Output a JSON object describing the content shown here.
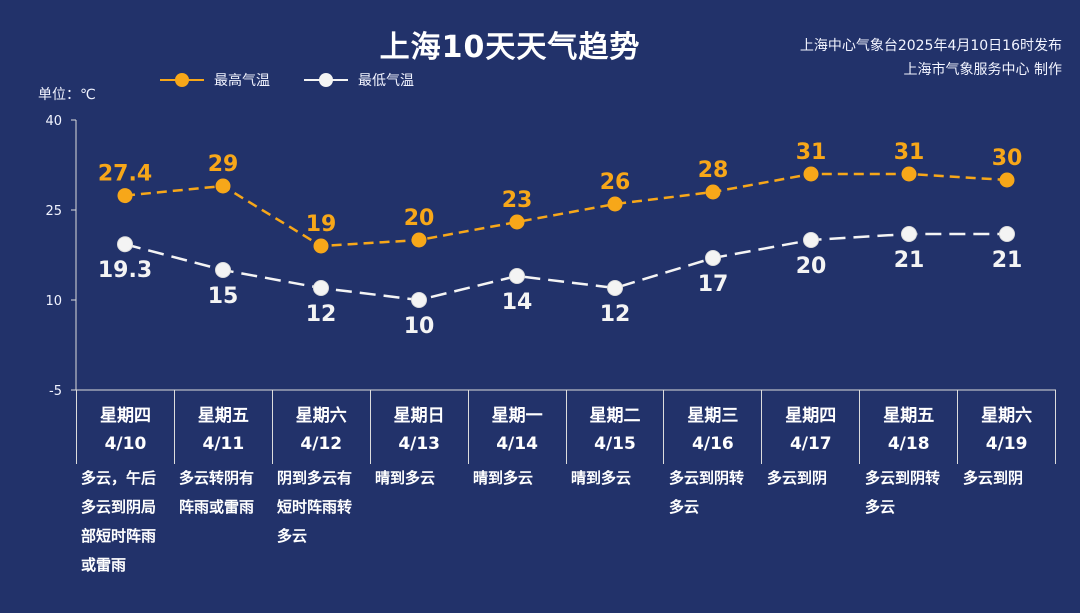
{
  "header": {
    "title": "上海10天天气趋势",
    "publisher_line1": "上海中心气象台2025年4月10日16时发布",
    "publisher_line2": "上海市气象服务中心 制作"
  },
  "unit_label": "单位：℃",
  "legend": {
    "high": "最高气温",
    "low": "最低气温"
  },
  "colors": {
    "background": "#22326a",
    "high": "#f7a719",
    "low": "#f4f4f4"
  },
  "days": [
    {
      "weekday": "星期四",
      "date": "4/10",
      "weather": "多云，午后多云到阴局部短时阵雨或雷雨"
    },
    {
      "weekday": "星期五",
      "date": "4/11",
      "weather": "多云转阴有阵雨或雷雨"
    },
    {
      "weekday": "星期六",
      "date": "4/12",
      "weather": "阴到多云有短时阵雨转多云"
    },
    {
      "weekday": "星期日",
      "date": "4/13",
      "weather": "晴到多云"
    },
    {
      "weekday": "星期一",
      "date": "4/14",
      "weather": "晴到多云"
    },
    {
      "weekday": "星期二",
      "date": "4/15",
      "weather": "晴到多云"
    },
    {
      "weekday": "星期三",
      "date": "4/16",
      "weather": "多云到阴转多云"
    },
    {
      "weekday": "星期四",
      "date": "4/17",
      "weather": "多云到阴"
    },
    {
      "weekday": "星期五",
      "date": "4/18",
      "weather": "多云到阴转多云"
    },
    {
      "weekday": "星期六",
      "date": "4/19",
      "weather": "多云到阴"
    }
  ],
  "chart_data": {
    "type": "line",
    "categories": [
      "4/10",
      "4/11",
      "4/12",
      "4/13",
      "4/14",
      "4/15",
      "4/16",
      "4/17",
      "4/18",
      "4/19"
    ],
    "series": [
      {
        "name": "最高气温",
        "values": [
          27.4,
          29,
          19,
          20,
          23,
          26,
          28,
          31,
          31,
          30
        ],
        "labels": [
          "27.4",
          "29",
          "19",
          "20",
          "23",
          "26",
          "28",
          "31",
          "31",
          "30"
        ]
      },
      {
        "name": "最低气温",
        "values": [
          19.3,
          15,
          12,
          10,
          14,
          12,
          17,
          20,
          21,
          21
        ],
        "labels": [
          "19.3",
          "15",
          "12",
          "10",
          "14",
          "12",
          "17",
          "20",
          "21",
          "21"
        ]
      }
    ],
    "yticks": [
      "40",
      "25",
      "10",
      "-5"
    ],
    "ytick_values": [
      40,
      25,
      10,
      -5
    ],
    "ylim": [
      -5,
      40
    ]
  }
}
